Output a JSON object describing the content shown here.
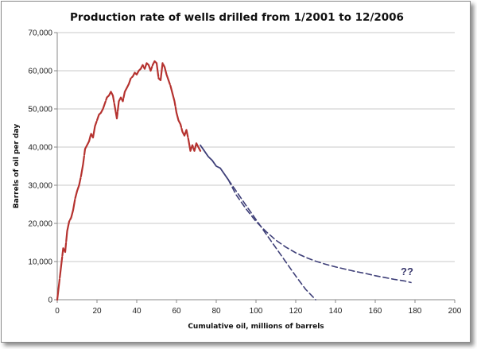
{
  "chart_data": {
    "type": "line",
    "title": "Production rate of wells drilled from 1/2001 to 12/2006",
    "xlabel": "Cumulative oil, millions of barrels",
    "ylabel": "Barrels of oil per day",
    "xlim": [
      0,
      200
    ],
    "ylim": [
      0,
      70000
    ],
    "x_ticks": [
      "0",
      "20",
      "40",
      "60",
      "80",
      "100",
      "120",
      "140",
      "160",
      "180",
      "200"
    ],
    "y_ticks": [
      "0",
      "10,000",
      "20,000",
      "30,000",
      "40,000",
      "50,000",
      "60,000",
      "70,000"
    ],
    "grid": "horizontal",
    "annotation": "??",
    "colors": {
      "actual": "#b5322f",
      "projection": "#3e3f78",
      "grid": "#c8c8c8",
      "axis": "#888888"
    },
    "series": [
      {
        "style": "solid-red",
        "x": [
          0,
          1,
          2,
          3,
          4,
          5,
          6,
          7,
          8,
          9,
          10,
          11,
          12,
          13,
          14,
          15,
          16,
          17,
          18,
          19,
          20,
          21,
          22,
          23,
          24,
          25,
          26,
          27,
          28,
          29,
          30,
          31,
          32,
          33,
          34,
          35,
          36,
          37,
          38,
          39,
          40,
          41,
          42,
          43,
          44,
          45,
          46,
          47,
          48,
          49,
          50,
          51,
          52,
          53,
          54,
          55,
          56,
          57,
          58,
          59,
          60,
          61,
          62,
          63,
          64,
          65,
          66,
          67,
          68,
          69,
          70,
          71,
          72
        ],
        "y": [
          0,
          4500,
          9000,
          13500,
          12500,
          18000,
          20500,
          21500,
          23500,
          26500,
          28500,
          30000,
          32500,
          35500,
          39500,
          40500,
          41500,
          43500,
          42500,
          45500,
          47000,
          48500,
          49000,
          50000,
          51500,
          53000,
          53500,
          54500,
          53500,
          50500,
          47500,
          52000,
          53000,
          52000,
          54500,
          55500,
          56500,
          58000,
          58500,
          59500,
          59000,
          60000,
          60500,
          61500,
          60500,
          62000,
          61500,
          60000,
          61500,
          62500,
          62000,
          58000,
          57500,
          62000,
          61000,
          59000,
          57500,
          56000,
          54000,
          52000,
          49000,
          47000,
          46000,
          44000,
          43000,
          44500,
          42000,
          39000,
          40500,
          39000,
          41000,
          40000,
          39000
        ]
      },
      {
        "style": "solid-blue",
        "x": [
          72,
          74,
          76,
          78,
          80,
          82,
          84,
          86
        ],
        "y": [
          40500,
          39000,
          37500,
          36500,
          35000,
          34500,
          33000,
          31500
        ]
      },
      {
        "style": "dashed-projection",
        "x": [
          86,
          90,
          95,
          100,
          105,
          110,
          115,
          120,
          125,
          130,
          135,
          140,
          145,
          150,
          155,
          160,
          165,
          170,
          175,
          178
        ],
        "y": [
          31500,
          27500,
          23800,
          20500,
          17900,
          15600,
          13800,
          12300,
          11100,
          10100,
          9300,
          8600,
          8000,
          7400,
          6900,
          6300,
          5800,
          5300,
          4900,
          4500
        ]
      },
      {
        "style": "dashed-projection",
        "x": [
          86,
          90,
          95,
          100,
          105,
          110,
          115,
          120,
          125,
          130
        ],
        "y": [
          31500,
          28500,
          24700,
          21000,
          17300,
          13600,
          9900,
          6200,
          2700,
          0
        ]
      }
    ]
  }
}
